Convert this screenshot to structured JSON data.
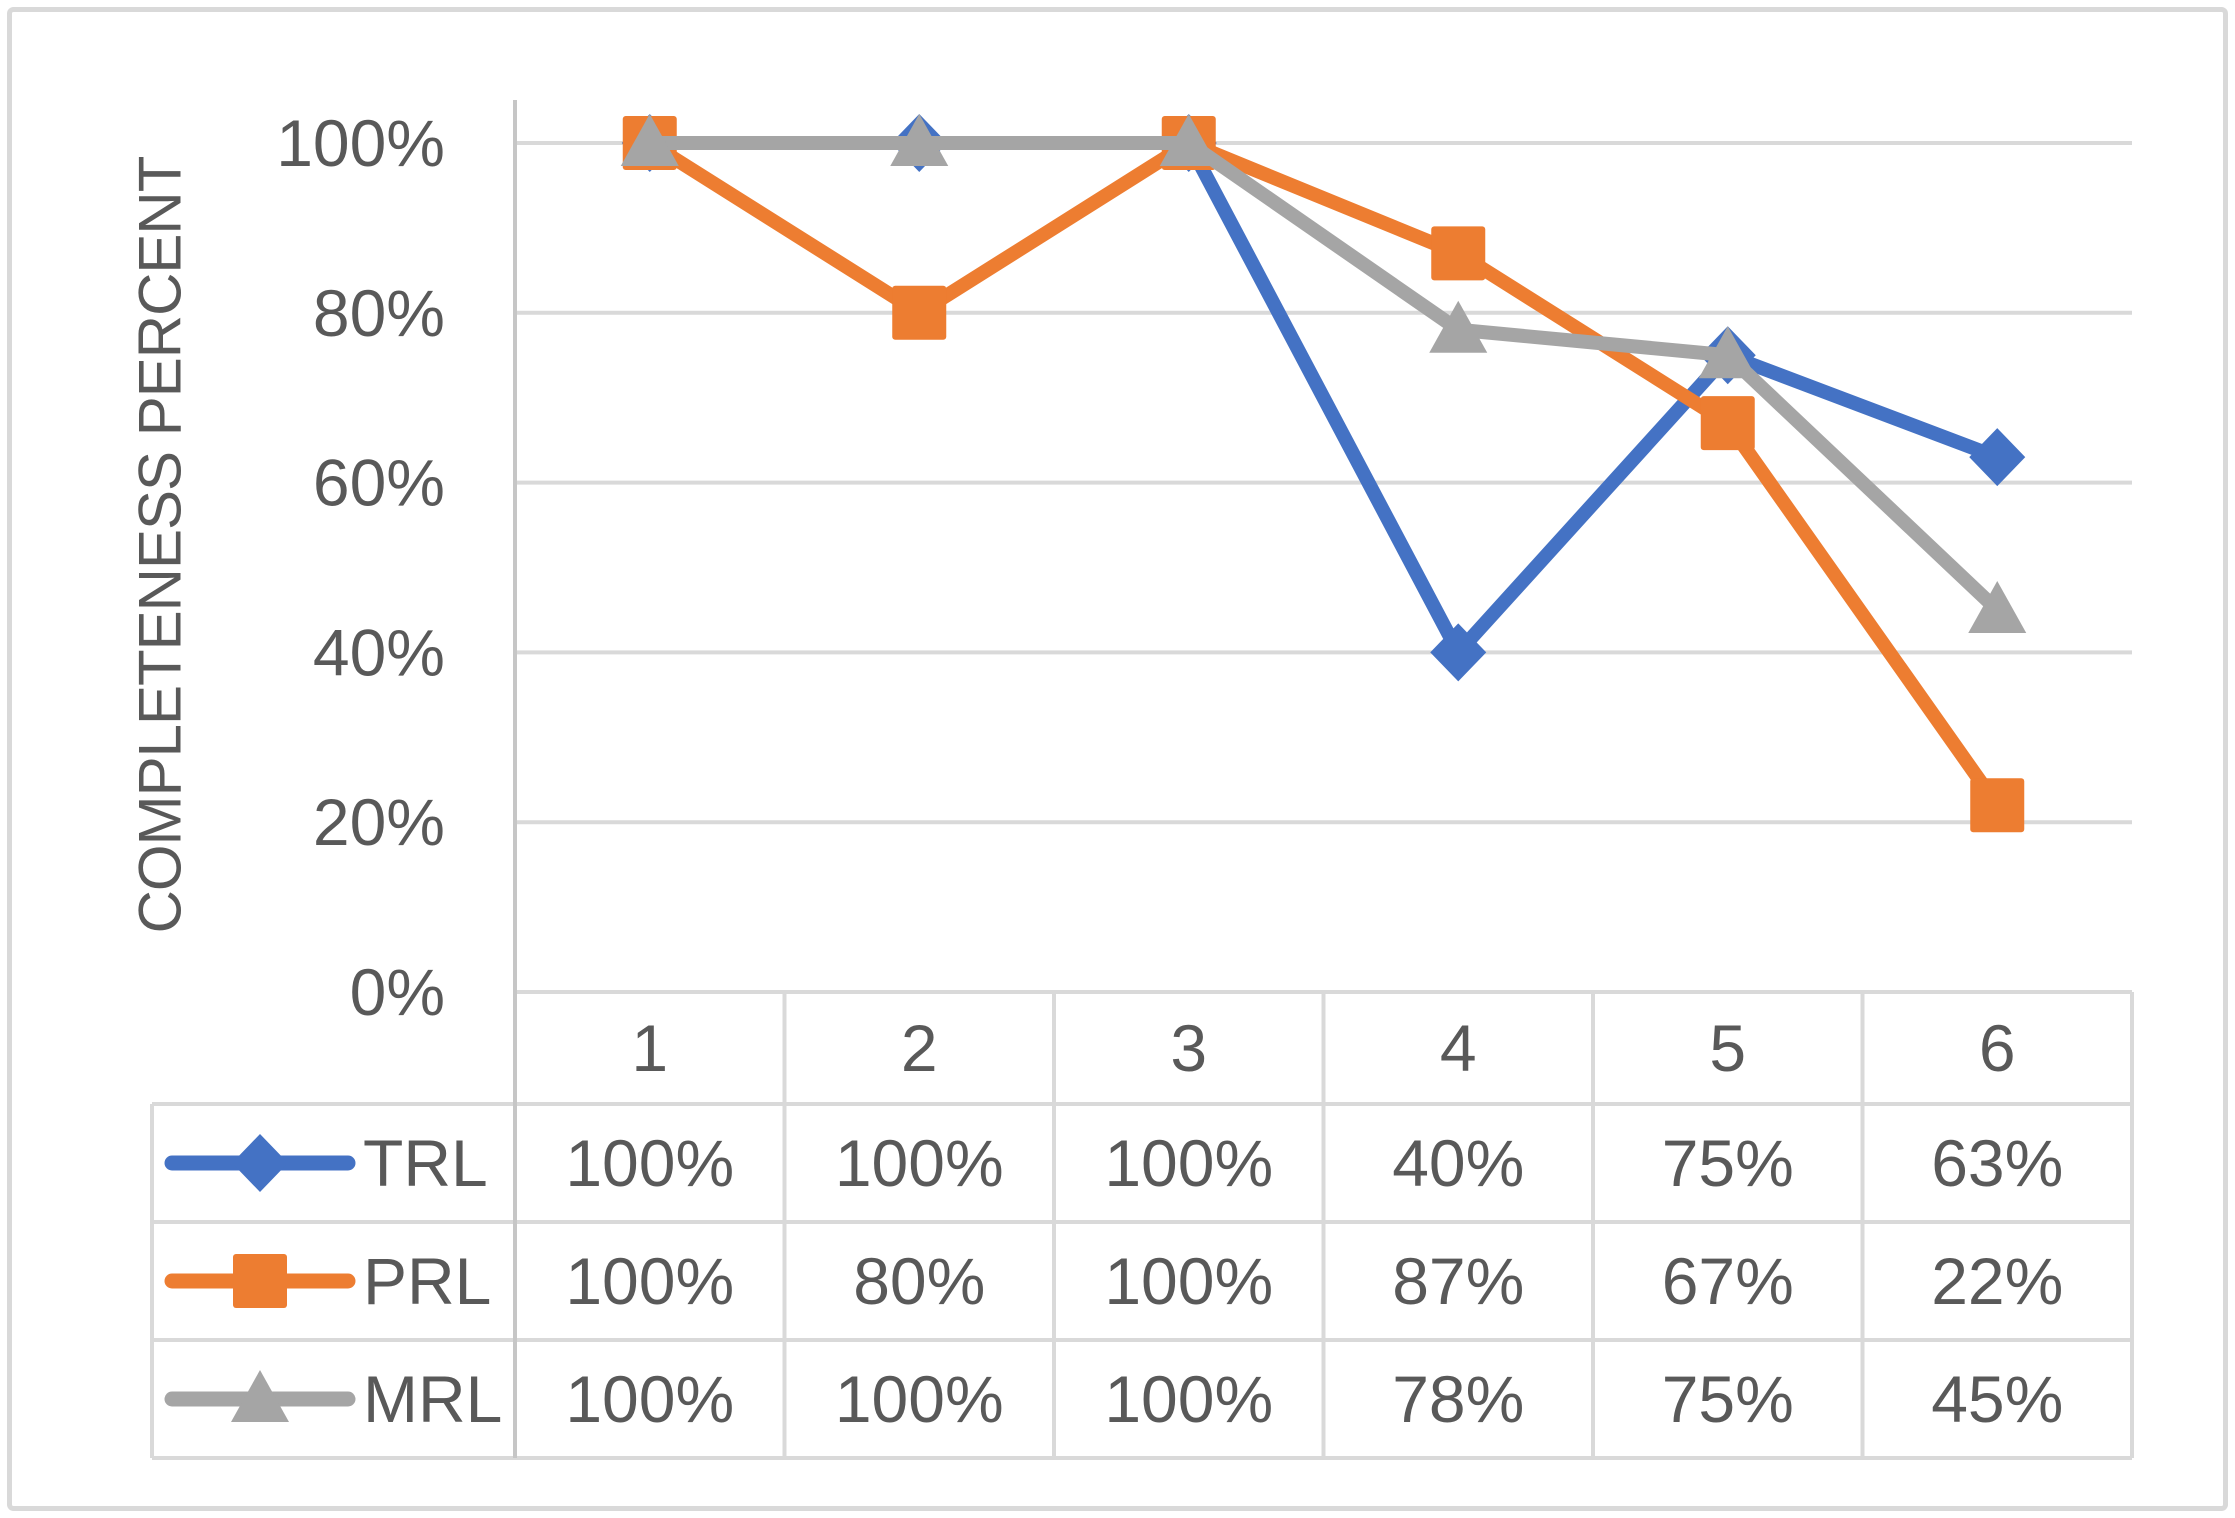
{
  "figure": {
    "description": "Line chart with attached data table",
    "background": "#FFFFFF",
    "border_color": "#D9D9D9"
  },
  "colors": {
    "trl": "#4472C4",
    "prl": "#ED7D31",
    "mrl": "#A5A5A5",
    "text": "#595959",
    "gridline": "#D9D9D9",
    "axis_line": "#C6C6C6",
    "table_border": "#D9D9D9"
  },
  "chart_data": {
    "type": "line",
    "title": "",
    "xlabel": "",
    "ylabel": "COMPLETENESS PERCENT",
    "categories": [
      "1",
      "2",
      "3",
      "4",
      "5",
      "6"
    ],
    "y_ticks": [
      {
        "label": "100%",
        "value": 100
      },
      {
        "label": "80%",
        "value": 80
      },
      {
        "label": "60%",
        "value": 60
      },
      {
        "label": "40%",
        "value": 40
      },
      {
        "label": "20%",
        "value": 20
      },
      {
        "label": "0%",
        "value": 0
      }
    ],
    "ylim": [
      0,
      100
    ],
    "grid": true,
    "legend_position": "data-table-left-column",
    "series": [
      {
        "name": "TRL",
        "marker": "diamond",
        "color": "#4472C4",
        "values": [
          100,
          100,
          100,
          40,
          75,
          63
        ],
        "table_labels": [
          "100%",
          "100%",
          "100%",
          "40%",
          "75%",
          "63%"
        ]
      },
      {
        "name": "PRL",
        "marker": "square",
        "color": "#ED7D31",
        "values": [
          100,
          80,
          100,
          87,
          67,
          22
        ],
        "table_labels": [
          "100%",
          "80%",
          "100%",
          "87%",
          "67%",
          "22%"
        ]
      },
      {
        "name": "MRL",
        "marker": "triangle",
        "color": "#A5A5A5",
        "values": [
          100,
          100,
          100,
          78,
          75,
          45
        ],
        "table_labels": [
          "100%",
          "100%",
          "100%",
          "78%",
          "75%",
          "45%"
        ]
      }
    ]
  }
}
